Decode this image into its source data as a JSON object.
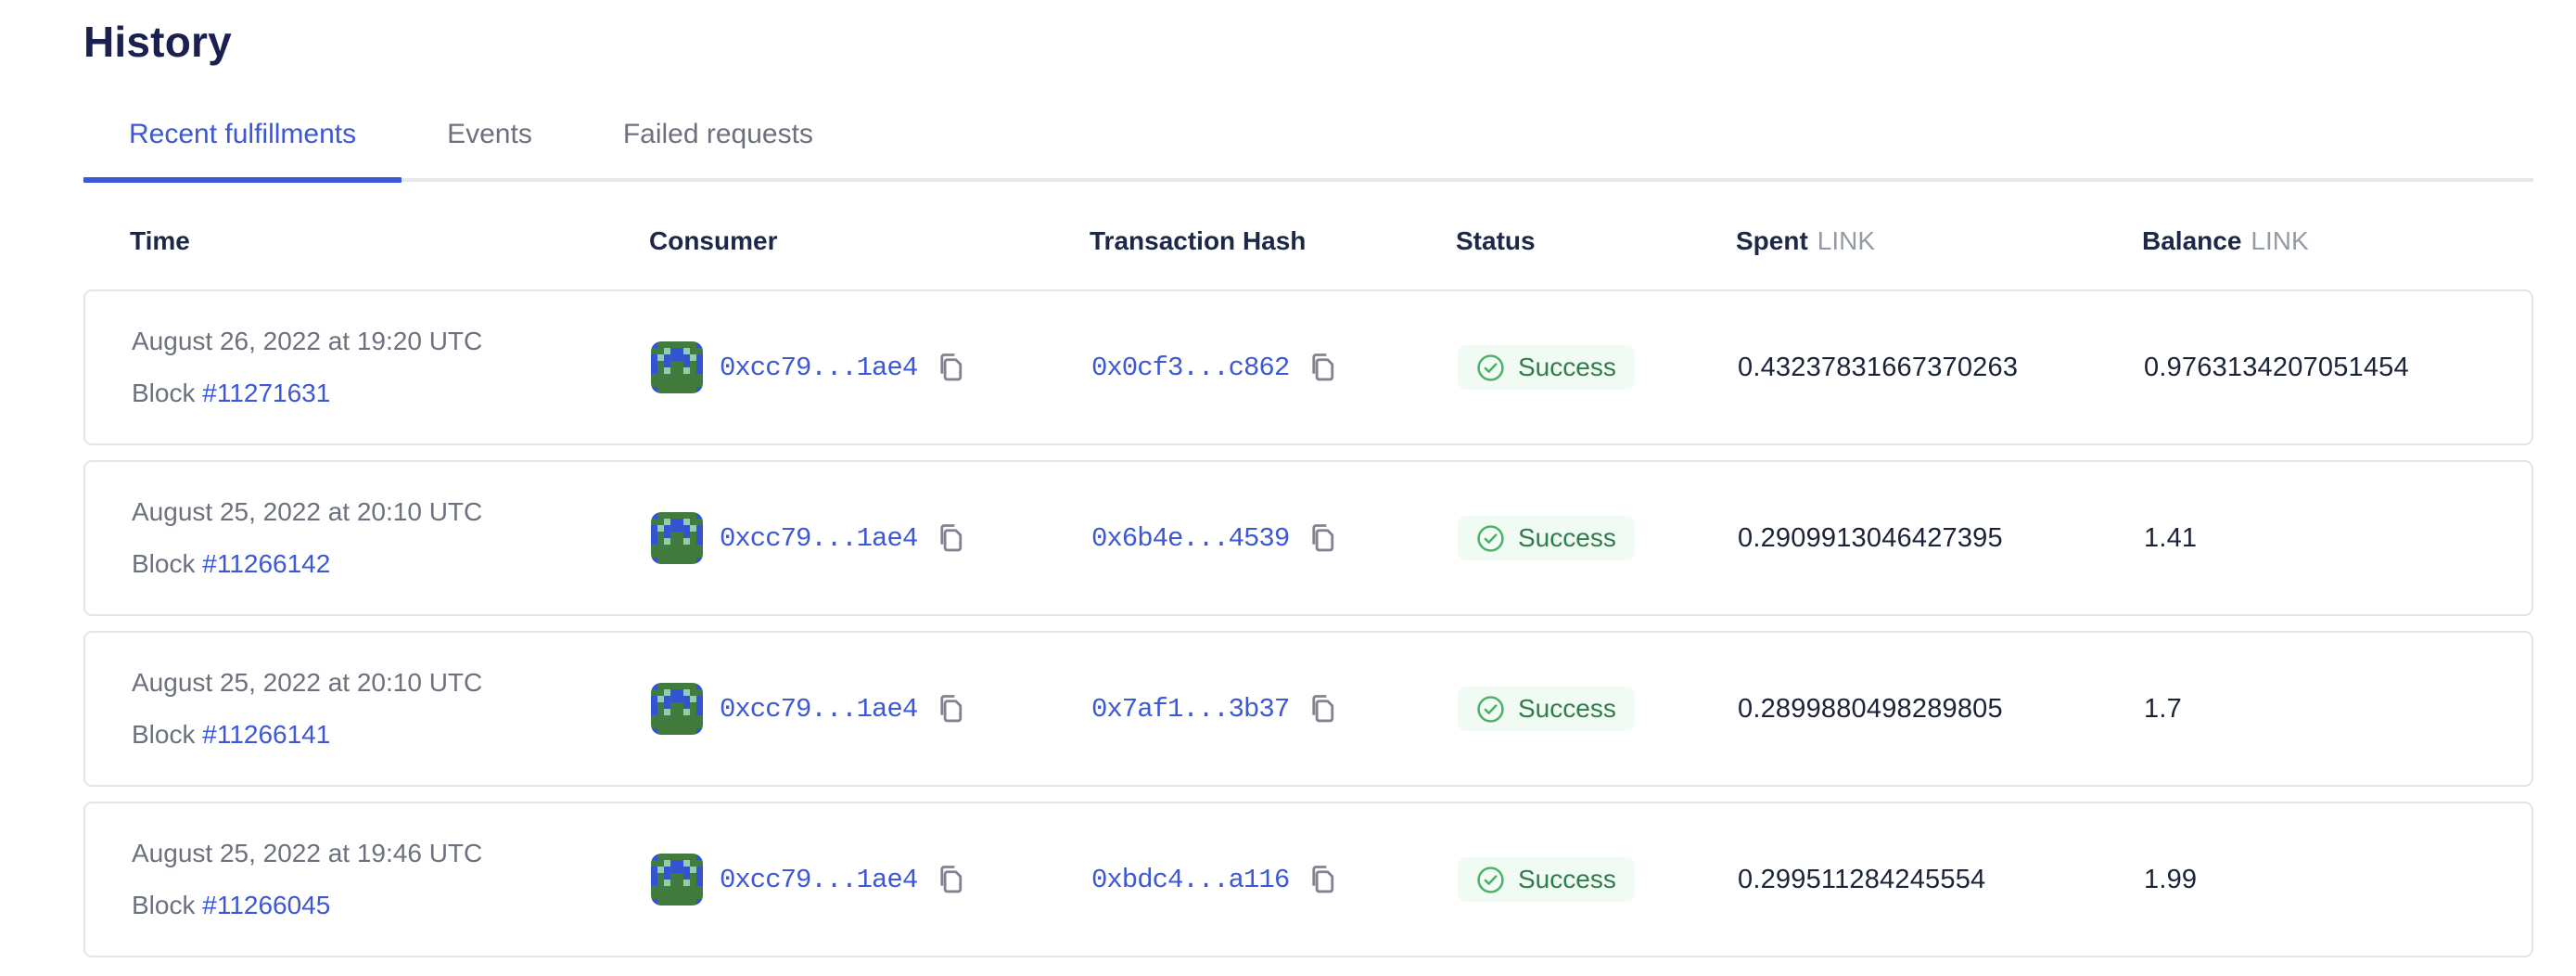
{
  "page": {
    "title": "History"
  },
  "tabs": [
    {
      "label": "Recent fulfillments",
      "active": true
    },
    {
      "label": "Events",
      "active": false
    },
    {
      "label": "Failed requests",
      "active": false
    }
  ],
  "table": {
    "headers": {
      "time": "Time",
      "consumer": "Consumer",
      "transaction_hash": "Transaction Hash",
      "status": "Status",
      "spent": "Spent",
      "balance": "Balance",
      "unit": "LINK"
    },
    "rows": [
      {
        "date": "August 26, 2022 at 19:20 UTC",
        "block_label": "Block",
        "block_number": "#11271631",
        "consumer_address": "0xcc79...1ae4",
        "tx_hash": "0x0cf3...c862",
        "status": "Success",
        "spent": "0.43237831667370263",
        "balance": "0.9763134207051454"
      },
      {
        "date": "August 25, 2022 at 20:10 UTC",
        "block_label": "Block",
        "block_number": "#11266142",
        "consumer_address": "0xcc79...1ae4",
        "tx_hash": "0x6b4e...4539",
        "status": "Success",
        "spent": "0.2909913046427395",
        "balance": "1.41"
      },
      {
        "date": "August 25, 2022 at 20:10 UTC",
        "block_label": "Block",
        "block_number": "#11266141",
        "consumer_address": "0xcc79...1ae4",
        "tx_hash": "0x7af1...3b37",
        "status": "Success",
        "spent": "0.2899880498289805",
        "balance": "1.7"
      },
      {
        "date": "August 25, 2022 at 19:46 UTC",
        "block_label": "Block",
        "block_number": "#11266045",
        "consumer_address": "0xcc79...1ae4",
        "tx_hash": "0xbdc4...a116",
        "status": "Success",
        "spent": "0.299511284245554",
        "balance": "1.99"
      }
    ]
  },
  "identicon": {
    "palette": {
      "G": "#417c3e",
      "B": "#3354cf",
      "T": "#8fd0ab"
    },
    "rows": [
      "BGGGGGGB",
      "GGTBBTGG",
      "BTBBBBTB",
      "BGBGGBGB",
      "BGTGGTGB",
      "GGGGGGGG",
      "GGGGGGGG",
      "BGGGGGGB"
    ]
  },
  "colors": {
    "title": "#1a2150",
    "heading": "#1d2747",
    "link": "#3c58d6",
    "muted": "#6c717d",
    "unit": "#949aa6",
    "number": "#1a2337",
    "success-text": "#2f7d4d",
    "success-icon": "#4caf68",
    "success-bg": "#f2faf4",
    "card-border": "#e4e4e8",
    "track": "#e7e7ea",
    "icon": "#80838f"
  }
}
